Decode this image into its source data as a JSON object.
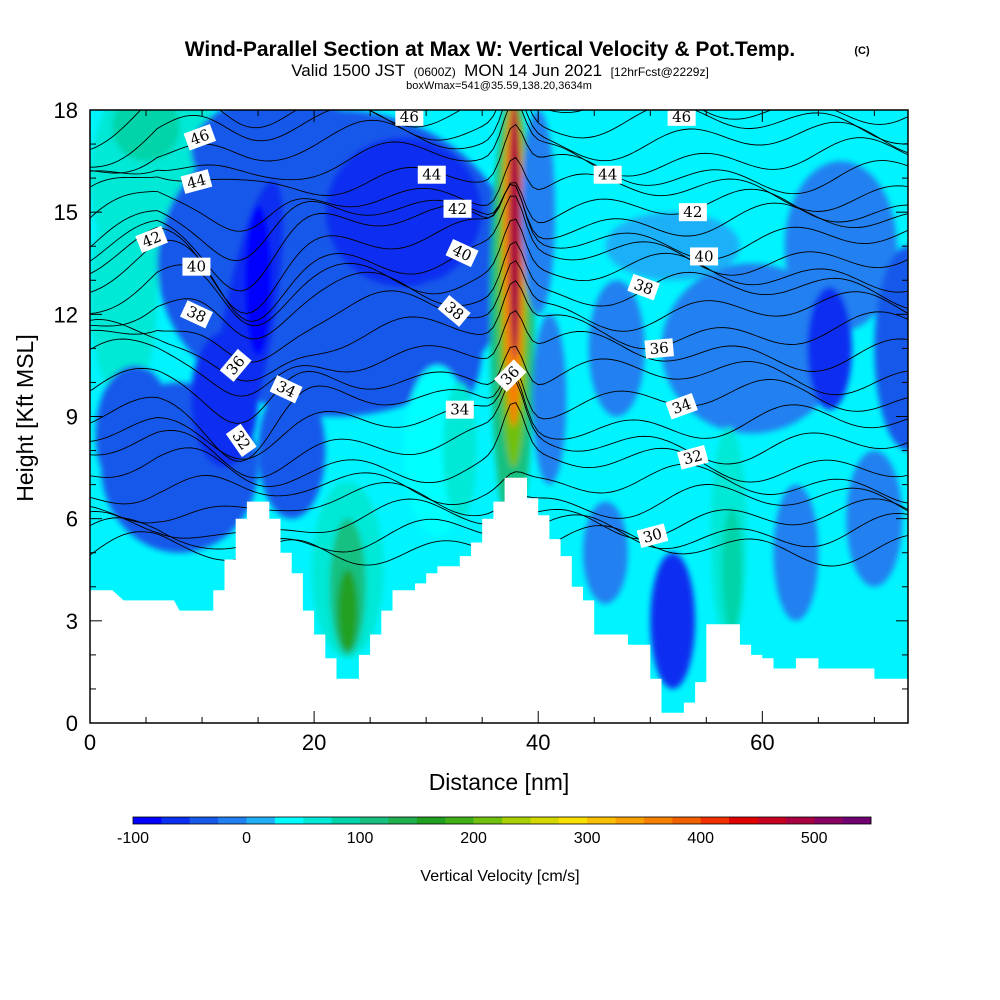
{
  "chart_data": {
    "type": "heatmap",
    "title": "Wind-Parallel Section at Max W: Vertical Velocity & Pot.Temp.",
    "title_mark": "(C)",
    "subtitle_parts": [
      "Valid 1500 JST",
      "(0600Z)",
      "MON 14 Jun 2021",
      "[12hrFcst@2229z]"
    ],
    "subtitle2": "boxWmax=541@35.59,138.20,3634m",
    "xlabel": "Distance [nm]",
    "ylabel": "Height [Kft MSL]",
    "xlim": [
      0,
      73
    ],
    "ylim": [
      0,
      18
    ],
    "x_ticks": [
      0,
      20,
      40,
      60
    ],
    "y_ticks": [
      0,
      3,
      6,
      9,
      12,
      15,
      18
    ],
    "colorbar": {
      "label": "Vertical Velocity [cm/s]",
      "ticks": [
        -100,
        0,
        100,
        200,
        300,
        400,
        500
      ],
      "range": [
        -100,
        550
      ],
      "colors": [
        "#0000ff",
        "#0a2ff0",
        "#1759ea",
        "#2080f0",
        "#1fb0f8",
        "#00ffff",
        "#00e8d6",
        "#00d4a8",
        "#18c080",
        "#20b050",
        "#20a020",
        "#40b018",
        "#70c010",
        "#a8d000",
        "#d4d800",
        "#f8e000",
        "#f8c000",
        "#f8a000",
        "#f88000",
        "#f06000",
        "#f03000",
        "#e00000",
        "#c80020",
        "#a80040",
        "#880060",
        "#700070"
      ]
    },
    "terrain_kft": [
      [
        0,
        3.9
      ],
      [
        2,
        3.9
      ],
      [
        3,
        3.6
      ],
      [
        5,
        3.6
      ],
      [
        7.5,
        3.6
      ],
      [
        8,
        3.3
      ],
      [
        10,
        3.3
      ],
      [
        11,
        3.3
      ],
      [
        11,
        3.9
      ],
      [
        12,
        3.9
      ],
      [
        12,
        4.8
      ],
      [
        13,
        4.8
      ],
      [
        13,
        6.0
      ],
      [
        14,
        6.0
      ],
      [
        14,
        6.5
      ],
      [
        15,
        6.5
      ],
      [
        16,
        6.5
      ],
      [
        16,
        6.0
      ],
      [
        17,
        6.0
      ],
      [
        17,
        5.0
      ],
      [
        18,
        5.0
      ],
      [
        18,
        4.4
      ],
      [
        19,
        4.4
      ],
      [
        19,
        3.3
      ],
      [
        20,
        3.3
      ],
      [
        20,
        2.6
      ],
      [
        21,
        2.6
      ],
      [
        21,
        1.9
      ],
      [
        22,
        1.9
      ],
      [
        22,
        1.3
      ],
      [
        23,
        1.3
      ],
      [
        24,
        1.3
      ],
      [
        24,
        2.0
      ],
      [
        25,
        2.0
      ],
      [
        25,
        2.6
      ],
      [
        26,
        2.6
      ],
      [
        26,
        3.3
      ],
      [
        27,
        3.3
      ],
      [
        27,
        3.9
      ],
      [
        29,
        3.9
      ],
      [
        29,
        4.1
      ],
      [
        30,
        4.1
      ],
      [
        30,
        4.4
      ],
      [
        31,
        4.4
      ],
      [
        31,
        4.6
      ],
      [
        33,
        4.6
      ],
      [
        33,
        4.9
      ],
      [
        34,
        4.9
      ],
      [
        34,
        5.3
      ],
      [
        35,
        5.3
      ],
      [
        35,
        6.0
      ],
      [
        36,
        6.0
      ],
      [
        36,
        6.5
      ],
      [
        37,
        6.5
      ],
      [
        37,
        7.2
      ],
      [
        39,
        7.2
      ],
      [
        39,
        6.6
      ],
      [
        40,
        6.6
      ],
      [
        40,
        6.1
      ],
      [
        41,
        6.1
      ],
      [
        41,
        5.4
      ],
      [
        42,
        5.4
      ],
      [
        42,
        4.9
      ],
      [
        43,
        4.9
      ],
      [
        43,
        4.0
      ],
      [
        44,
        4.0
      ],
      [
        44,
        3.6
      ],
      [
        45,
        3.6
      ],
      [
        45,
        2.6
      ],
      [
        48,
        2.6
      ],
      [
        48,
        2.3
      ],
      [
        50,
        2.3
      ],
      [
        50,
        1.3
      ],
      [
        51,
        1.3
      ],
      [
        51,
        0.3
      ],
      [
        52,
        0.3
      ],
      [
        53,
        0.3
      ],
      [
        53,
        0.6
      ],
      [
        54,
        0.6
      ],
      [
        54,
        1.2
      ],
      [
        55,
        1.2
      ],
      [
        55,
        2.9
      ],
      [
        57,
        2.9
      ],
      [
        58,
        2.9
      ],
      [
        58,
        2.3
      ],
      [
        59,
        2.3
      ],
      [
        59,
        2.0
      ],
      [
        60,
        2.0
      ],
      [
        60,
        1.9
      ],
      [
        61,
        1.9
      ],
      [
        61,
        1.6
      ],
      [
        63,
        1.6
      ],
      [
        63,
        1.9
      ],
      [
        65,
        1.9
      ],
      [
        65,
        1.6
      ],
      [
        70,
        1.6
      ],
      [
        70,
        1.3
      ],
      [
        73,
        1.3
      ]
    ],
    "theta_contours": [
      {
        "name": "30",
        "base": 5.2
      },
      {
        "name": "",
        "base": 5.6
      },
      {
        "name": "",
        "base": 6.0
      },
      {
        "name": "",
        "base": 6.5
      },
      {
        "name": "32",
        "base": 7.0
      },
      {
        "name": "",
        "base": 7.6
      },
      {
        "name": "",
        "base": 8.2
      },
      {
        "name": "34",
        "base": 8.8
      },
      {
        "name": "",
        "base": 9.5
      },
      {
        "name": "",
        "base": 10.2
      },
      {
        "name": "36",
        "base": 10.9
      },
      {
        "name": "",
        "base": 11.5
      },
      {
        "name": "",
        "base": 12.1
      },
      {
        "name": "38",
        "base": 12.7
      },
      {
        "name": "",
        "base": 13.2
      },
      {
        "name": "40",
        "base": 13.7
      },
      {
        "name": "",
        "base": 14.2
      },
      {
        "name": "",
        "base": 14.7
      },
      {
        "name": "42",
        "base": 15.1
      },
      {
        "name": "",
        "base": 15.6
      },
      {
        "name": "44",
        "base": 16.1
      },
      {
        "name": "",
        "base": 16.6
      },
      {
        "name": "",
        "base": 17.1
      },
      {
        "name": "46",
        "base": 17.6
      },
      {
        "name": "",
        "base": 18.1
      }
    ],
    "contour_labels": [
      {
        "text": "46",
        "x": 9.8,
        "y": 17.2,
        "rot": -20
      },
      {
        "text": "46",
        "x": 28.5,
        "y": 17.8,
        "rot": 0
      },
      {
        "text": "46",
        "x": 52.8,
        "y": 17.8,
        "rot": 0
      },
      {
        "text": "44",
        "x": 9.5,
        "y": 15.9,
        "rot": -15
      },
      {
        "text": "44",
        "x": 30.5,
        "y": 16.1,
        "rot": 0
      },
      {
        "text": "44",
        "x": 46.2,
        "y": 16.1,
        "rot": 0
      },
      {
        "text": "42",
        "x": 5.5,
        "y": 14.2,
        "rot": -22
      },
      {
        "text": "42",
        "x": 32.8,
        "y": 15.1,
        "rot": 0
      },
      {
        "text": "42",
        "x": 53.8,
        "y": 15.0,
        "rot": 0
      },
      {
        "text": "40",
        "x": 9.5,
        "y": 13.4,
        "rot": 0
      },
      {
        "text": "40",
        "x": 33.2,
        "y": 13.8,
        "rot": 25
      },
      {
        "text": "40",
        "x": 54.8,
        "y": 13.7,
        "rot": 0
      },
      {
        "text": "38",
        "x": 9.5,
        "y": 12.0,
        "rot": 25
      },
      {
        "text": "38",
        "x": 32.5,
        "y": 12.1,
        "rot": 40
      },
      {
        "text": "38",
        "x": 49.4,
        "y": 12.8,
        "rot": 20
      },
      {
        "text": "36",
        "x": 13.0,
        "y": 10.5,
        "rot": -50
      },
      {
        "text": "36",
        "x": 37.5,
        "y": 10.2,
        "rot": -45
      },
      {
        "text": "36",
        "x": 50.8,
        "y": 11.0,
        "rot": -5
      },
      {
        "text": "34",
        "x": 17.5,
        "y": 9.8,
        "rot": 25
      },
      {
        "text": "34",
        "x": 33.0,
        "y": 9.2,
        "rot": 0
      },
      {
        "text": "34",
        "x": 52.8,
        "y": 9.3,
        "rot": -20
      },
      {
        "text": "32",
        "x": 13.5,
        "y": 8.3,
        "rot": 55
      },
      {
        "text": "32",
        "x": 53.8,
        "y": 7.8,
        "rot": -15
      },
      {
        "text": "30",
        "x": 50.2,
        "y": 5.5,
        "rot": -15
      }
    ],
    "wmax_cm_s": 541
  }
}
